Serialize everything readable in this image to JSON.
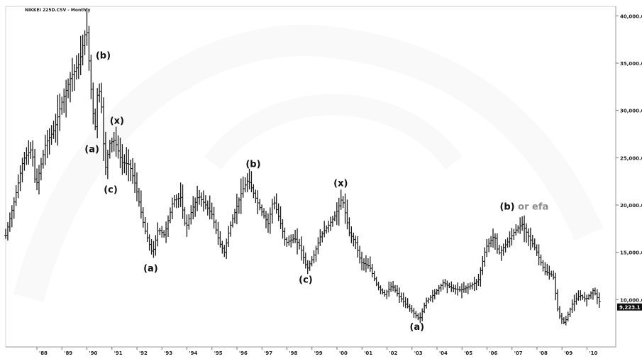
{
  "chart_data": {
    "type": "bar",
    "style": "ohlc-price-bars",
    "title": "NIKKEI 225D.CSV - Monthly",
    "xlabel": "",
    "ylabel": "",
    "ylim": [
      5000,
      41000
    ],
    "xlim": [
      1986.75,
      2011.15
    ],
    "y_ticks": [
      {
        "value": 40000,
        "label": "40,000.0"
      },
      {
        "value": 35000,
        "label": "35,000.0"
      },
      {
        "value": 30000,
        "label": "30,000.0"
      },
      {
        "value": 25000,
        "label": "25,000.0"
      },
      {
        "value": 20000,
        "label": "20,000.0"
      },
      {
        "value": 15000,
        "label": "15,000.0"
      },
      {
        "value": 10000,
        "label": "10,000.0"
      }
    ],
    "x_ticks": [
      {
        "value": 1988,
        "label": "'88"
      },
      {
        "value": 1989,
        "label": "'89"
      },
      {
        "value": 1990,
        "label": "'90"
      },
      {
        "value": 1991,
        "label": "'91"
      },
      {
        "value": 1992,
        "label": "'92"
      },
      {
        "value": 1993,
        "label": "'93"
      },
      {
        "value": 1994,
        "label": "'94"
      },
      {
        "value": 1995,
        "label": "'95"
      },
      {
        "value": 1996,
        "label": "'96"
      },
      {
        "value": 1997,
        "label": "'97"
      },
      {
        "value": 1998,
        "label": "'98"
      },
      {
        "value": 1999,
        "label": "'99"
      },
      {
        "value": 2000,
        "label": "'00"
      },
      {
        "value": 2001,
        "label": "'01"
      },
      {
        "value": 2002,
        "label": "'02"
      },
      {
        "value": 2003,
        "label": "'03"
      },
      {
        "value": 2004,
        "label": "'04"
      },
      {
        "value": 2005,
        "label": "'05"
      },
      {
        "value": 2006,
        "label": "'06"
      },
      {
        "value": 2007,
        "label": "'07"
      },
      {
        "value": 2008,
        "label": "'08"
      },
      {
        "value": 2009,
        "label": "'09"
      },
      {
        "value": 2010,
        "label": "'10"
      }
    ],
    "path_points": [
      [
        1986.75,
        16800
      ],
      [
        1987.1,
        20500
      ],
      [
        1987.45,
        24800
      ],
      [
        1987.8,
        26000
      ],
      [
        1987.95,
        21800
      ],
      [
        1988.35,
        26500
      ],
      [
        1988.7,
        28000
      ],
      [
        1988.95,
        30500
      ],
      [
        1989.35,
        33500
      ],
      [
        1989.7,
        35000
      ],
      [
        1989.98,
        38900
      ],
      [
        1990.2,
        31000
      ],
      [
        1990.32,
        27800
      ],
      [
        1990.45,
        33000
      ],
      [
        1990.6,
        30000
      ],
      [
        1990.72,
        23500
      ],
      [
        1990.9,
        26500
      ],
      [
        1991.1,
        26900
      ],
      [
        1991.4,
        24500
      ],
      [
        1991.7,
        24300
      ],
      [
        1991.95,
        22000
      ],
      [
        1992.3,
        17500
      ],
      [
        1992.62,
        14800
      ],
      [
        1992.85,
        17500
      ],
      [
        1993.1,
        16800
      ],
      [
        1993.45,
        20500
      ],
      [
        1993.75,
        20800
      ],
      [
        1993.95,
        17500
      ],
      [
        1994.2,
        19500
      ],
      [
        1994.45,
        21000
      ],
      [
        1994.75,
        20000
      ],
      [
        1995.0,
        19000
      ],
      [
        1995.3,
        16000
      ],
      [
        1995.5,
        15000
      ],
      [
        1995.7,
        17500
      ],
      [
        1995.95,
        19500
      ],
      [
        1996.2,
        21500
      ],
      [
        1996.45,
        22700
      ],
      [
        1996.7,
        21000
      ],
      [
        1996.95,
        19500
      ],
      [
        1997.25,
        18000
      ],
      [
        1997.45,
        20600
      ],
      [
        1997.7,
        18500
      ],
      [
        1997.95,
        16000
      ],
      [
        1998.3,
        16500
      ],
      [
        1998.55,
        15500
      ],
      [
        1998.8,
        13200
      ],
      [
        1999.05,
        14500
      ],
      [
        1999.35,
        16800
      ],
      [
        1999.7,
        18000
      ],
      [
        1999.95,
        19000
      ],
      [
        2000.2,
        20800
      ],
      [
        2000.5,
        17000
      ],
      [
        2000.75,
        16000
      ],
      [
        2000.95,
        14000
      ],
      [
        2001.3,
        13500
      ],
      [
        2001.6,
        11500
      ],
      [
        2001.9,
        10500
      ],
      [
        2002.2,
        11500
      ],
      [
        2002.45,
        10500
      ],
      [
        2002.75,
        9500
      ],
      [
        2003.0,
        8800
      ],
      [
        2003.3,
        7900
      ],
      [
        2003.55,
        9800
      ],
      [
        2003.85,
        10500
      ],
      [
        2004.25,
        11800
      ],
      [
        2004.6,
        11200
      ],
      [
        2004.95,
        11000
      ],
      [
        2005.3,
        11400
      ],
      [
        2005.65,
        12000
      ],
      [
        2005.95,
        15500
      ],
      [
        2006.3,
        16800
      ],
      [
        2006.45,
        14800
      ],
      [
        2006.8,
        16000
      ],
      [
        2007.1,
        17200
      ],
      [
        2007.4,
        18000
      ],
      [
        2007.7,
        16500
      ],
      [
        2007.95,
        15300
      ],
      [
        2008.3,
        13000
      ],
      [
        2008.65,
        12500
      ],
      [
        2008.85,
        8500
      ],
      [
        2009.1,
        7500
      ],
      [
        2009.4,
        9500
      ],
      [
        2009.7,
        10500
      ],
      [
        2009.95,
        10000
      ],
      [
        2010.25,
        11000
      ],
      [
        2010.45,
        10000
      ],
      [
        2010.55,
        9600
      ]
    ],
    "bar_spacing_years": 0.0833,
    "last_price_label": "9,223.1",
    "last_price_value": 9223,
    "annotations": [
      {
        "text": "(b)",
        "x": 1990.65,
        "y": 35500
      },
      {
        "text": "(a)",
        "x": 1990.2,
        "y": 25600
      },
      {
        "text": "(x)",
        "x": 1991.2,
        "y": 28600
      },
      {
        "text": "(c)",
        "x": 1990.95,
        "y": 21300
      },
      {
        "text": "(a)",
        "x": 1992.55,
        "y": 13000
      },
      {
        "text": "(b)",
        "x": 1996.65,
        "y": 24000
      },
      {
        "text": "(c)",
        "x": 1998.75,
        "y": 11800
      },
      {
        "text": "(x)",
        "x": 2000.15,
        "y": 22000
      },
      {
        "text": "(a)",
        "x": 2003.2,
        "y": 6800
      },
      {
        "text": "(b)",
        "x": 2006.85,
        "y": 19500,
        "suffix": " or efa"
      }
    ]
  }
}
